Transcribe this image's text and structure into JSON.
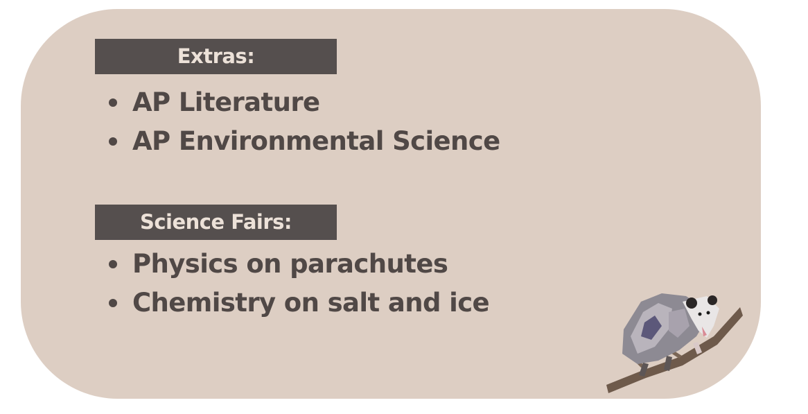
{
  "sections": [
    {
      "header": "Extras:",
      "items": [
        "AP Literature",
        "AP Environmental Science"
      ]
    },
    {
      "header": "Science Fairs:",
      "items": [
        "Physics on parachutes",
        "Chemistry on salt and ice"
      ]
    }
  ],
  "colors": {
    "card_background": "#ddcec3",
    "header_background": "#554f4e",
    "header_text": "#ece1d8",
    "body_text": "#504846"
  },
  "illustration": "opossum-on-branch"
}
